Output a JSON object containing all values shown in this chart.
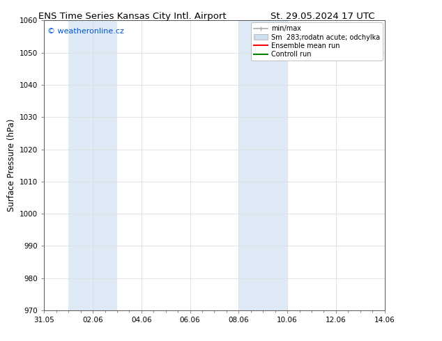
{
  "title_left": "ENS Time Series Kansas City Intl. Airport",
  "title_right": "St. 29.05.2024 17 UTC",
  "ylabel": "Surface Pressure (hPa)",
  "ylim": [
    970,
    1060
  ],
  "yticks": [
    970,
    980,
    990,
    1000,
    1010,
    1020,
    1030,
    1040,
    1050,
    1060
  ],
  "x_start": "2024-05-31",
  "x_end": "2024-06-14",
  "x_tick_dates": [
    "2024-05-31",
    "2024-06-02",
    "2024-06-04",
    "2024-06-06",
    "2024-06-08",
    "2024-06-10",
    "2024-06-12",
    "2024-06-14"
  ],
  "x_tick_labels": [
    "31.05",
    "02.06",
    "04.06",
    "06.06",
    "08.06",
    "10.06",
    "12.06",
    "14.06"
  ],
  "shaded_regions": [
    {
      "start": "2024-06-01",
      "end": "2024-06-03"
    },
    {
      "start": "2024-06-08",
      "end": "2024-06-10"
    }
  ],
  "shaded_color": "#ddeaf5",
  "background_color": "#ffffff",
  "plot_bg_color": "#ffffff",
  "watermark_text": "© weatheronline.cz",
  "watermark_color": "#0055cc",
  "legend_label_1": "min/max",
  "legend_label_2": "Sm  283;rodatn acute; odchylka",
  "legend_label_3": "Ensemble mean run",
  "legend_label_4": "Controll run",
  "legend_color_1": "#aaaaaa",
  "legend_color_2": "#ccddee",
  "legend_color_3": "#ff0000",
  "legend_color_4": "#008000",
  "title_fontsize": 9.5,
  "tick_fontsize": 7.5,
  "label_fontsize": 8.5,
  "watermark_fontsize": 8,
  "legend_fontsize": 7,
  "grid_color": "#dddddd",
  "spine_color": "#555555"
}
